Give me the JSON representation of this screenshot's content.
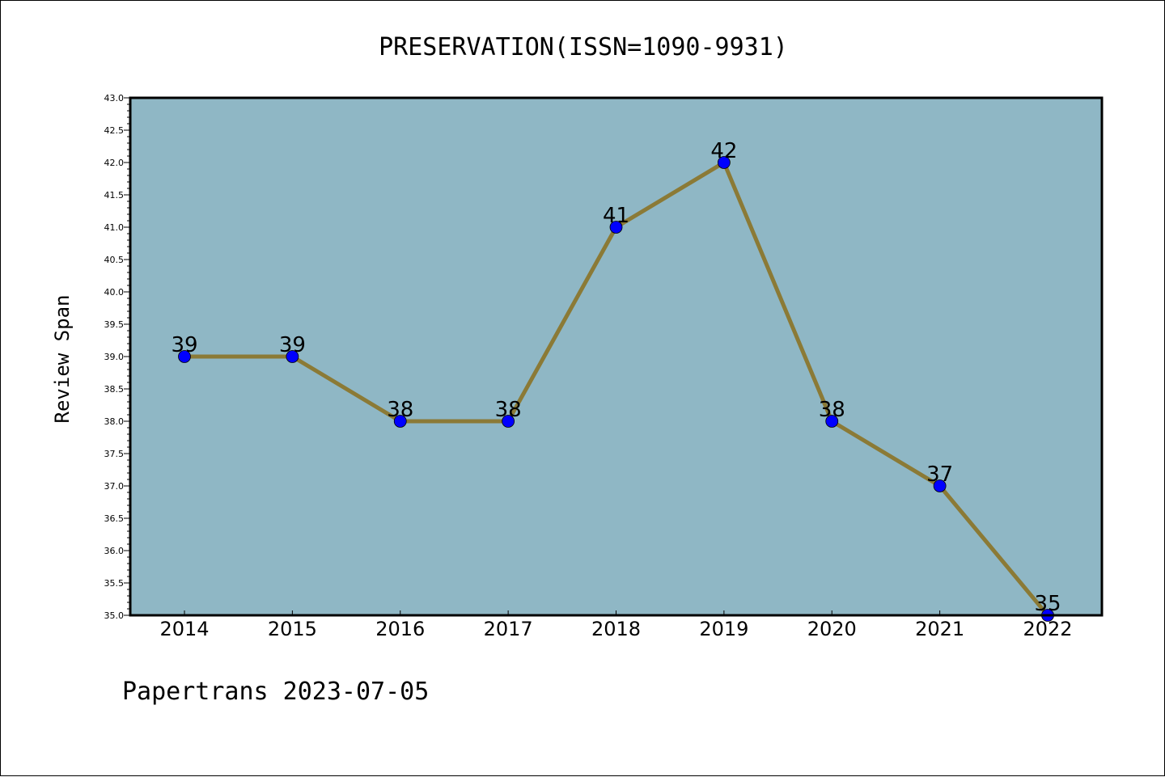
{
  "chart_data": {
    "type": "line",
    "title": "PRESERVATION(ISSN=1090-9931)",
    "xlabel": "",
    "ylabel": "Review Span",
    "categories": [
      "2014",
      "2015",
      "2016",
      "2017",
      "2018",
      "2019",
      "2020",
      "2021",
      "2022"
    ],
    "series": [
      {
        "values": [
          39,
          39,
          38,
          38,
          41,
          42,
          38,
          37,
          35
        ]
      }
    ],
    "ylim": [
      35.0,
      43.0
    ],
    "ytick_step": 0.5,
    "grid": false,
    "plot_background": "#8fb7c5",
    "line_color": "#8b7a36",
    "marker_color": "#0000ff"
  },
  "footer": {
    "text": "Papertrans 2023-07-05"
  }
}
